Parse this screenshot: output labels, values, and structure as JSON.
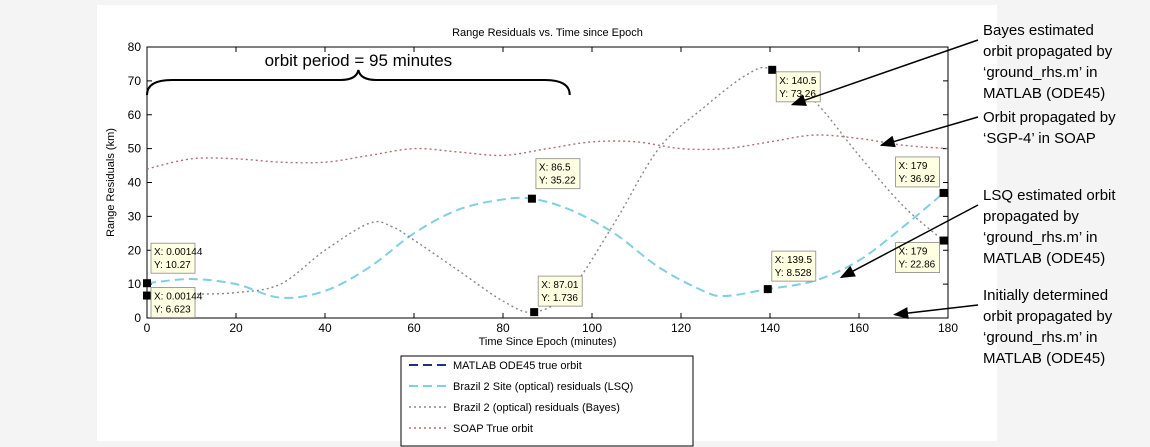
{
  "chart_data": {
    "type": "line",
    "title": "Range Residuals vs. Time since Epoch",
    "xlabel": "Time Since Epoch (minutes)",
    "ylabel": "Range Residuals (km)",
    "xlim": [
      0,
      180
    ],
    "ylim": [
      0,
      80
    ],
    "xticks": [
      "0",
      "20",
      "40",
      "60",
      "80",
      "100",
      "120",
      "140",
      "160",
      "180"
    ],
    "yticks": [
      "0",
      "10",
      "20",
      "30",
      "40",
      "50",
      "60",
      "70",
      "80"
    ],
    "grid": false,
    "legend_placement": "below plot",
    "series": [
      {
        "name": "MATLAB ODE45 true orbit",
        "style": "dashed",
        "color": "#1f2f8a",
        "x": [],
        "y": []
      },
      {
        "name": "Brazil 2 Site (optical) residuals (LSQ)",
        "style": "dashed",
        "color": "#7fd0e0",
        "x": [
          0,
          10,
          20,
          30,
          40,
          50,
          60,
          70,
          80,
          86.5,
          95,
          105,
          115,
          125,
          130,
          139.5,
          150,
          160,
          170,
          179
        ],
        "y": [
          10.27,
          11.5,
          10,
          6,
          8,
          15,
          25,
          32,
          35,
          35.22,
          32,
          25,
          15,
          8,
          6.5,
          8.528,
          11,
          17,
          27,
          36.92
        ]
      },
      {
        "name": "Brazil 2 (optical) residuals (Bayes)",
        "style": "dotted",
        "color": "#888888",
        "x": [
          0,
          10,
          20,
          30,
          40,
          50,
          55,
          60,
          70,
          80,
          87.01,
          95,
          105,
          115,
          125,
          135,
          140.5,
          150,
          160,
          170,
          179
        ],
        "y": [
          6.623,
          7,
          7.5,
          10,
          20,
          28,
          27,
          23,
          14,
          5,
          1.736,
          8,
          28,
          50,
          62,
          72,
          73.26,
          64,
          48,
          33,
          22.86
        ]
      },
      {
        "name": "SOAP True orbit",
        "style": "dotted",
        "color": "#b07070",
        "x": [
          0,
          10,
          20,
          30,
          40,
          50,
          60,
          70,
          80,
          90,
          100,
          110,
          120,
          130,
          140,
          150,
          160,
          170,
          180
        ],
        "y": [
          44,
          47,
          47,
          46,
          46,
          48,
          50,
          49,
          48,
          50,
          52,
          52,
          50,
          50,
          52,
          54,
          53,
          51,
          50
        ]
      }
    ],
    "markers": [
      {
        "x": 0.00144,
        "y": 10.27,
        "xlabel": "X: 0.00144",
        "ylabel": "Y: 10.27"
      },
      {
        "x": 0.00144,
        "y": 6.623,
        "xlabel": "X: 0.00144",
        "ylabel": "Y: 6.623"
      },
      {
        "x": 86.5,
        "y": 35.22,
        "xlabel": "X: 86.5",
        "ylabel": "Y: 35.22"
      },
      {
        "x": 87.01,
        "y": 1.736,
        "xlabel": "X: 87.01",
        "ylabel": "Y: 1.736"
      },
      {
        "x": 139.5,
        "y": 8.528,
        "xlabel": "X: 139.5",
        "ylabel": "Y: 8.528"
      },
      {
        "x": 140.5,
        "y": 73.26,
        "xlabel": "X: 140.5",
        "ylabel": "Y: 73.26"
      },
      {
        "x": 179,
        "y": 36.92,
        "xlabel": "X: 179",
        "ylabel": "Y: 36.92"
      },
      {
        "x": 179,
        "y": 22.86,
        "xlabel": "X: 179",
        "ylabel": "Y: 22.86"
      }
    ],
    "period_annotation": {
      "text": "orbit period = 95 minutes",
      "from_x": 0,
      "to_x": 95
    },
    "annotations": [
      {
        "lines": [
          "Bayes estimated",
          "orbit propagated by",
          "‘ground_rhs.m’ in",
          "MATLAB (ODE45)"
        ],
        "target_x": 145,
        "target_y": 63
      },
      {
        "lines": [
          "Orbit propagated by",
          "‘SGP-4’ in SOAP"
        ],
        "target_x": 165,
        "target_y": 51
      },
      {
        "lines": [
          "LSQ estimated orbit",
          "propagated by",
          "‘ground_rhs.m’ in",
          "MATLAB (ODE45)"
        ],
        "target_x": 156,
        "target_y": 12
      },
      {
        "lines": [
          "Initially determined",
          "orbit propagated by",
          "‘ground_rhs.m’ in",
          "MATLAB (ODE45)"
        ],
        "target_x": 168,
        "target_y": 1
      }
    ]
  }
}
